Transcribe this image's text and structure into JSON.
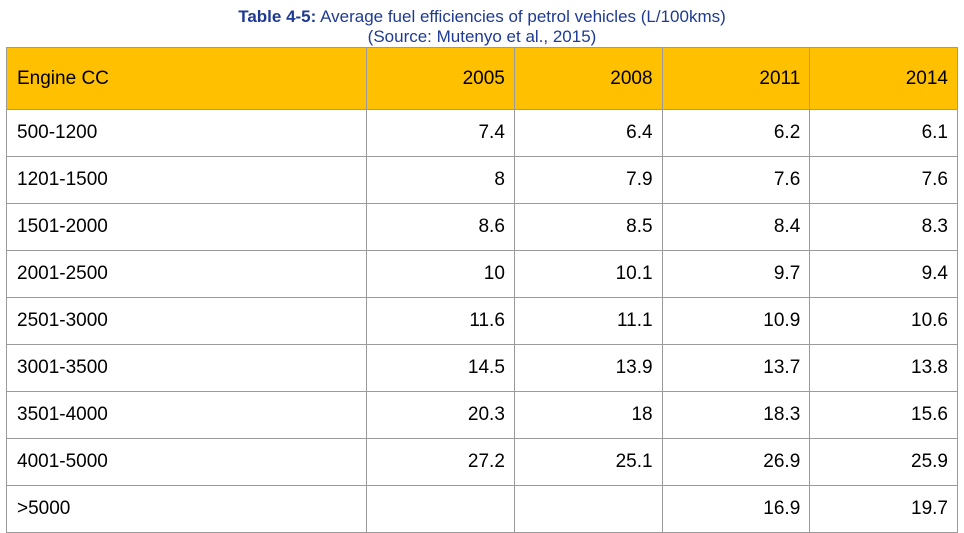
{
  "caption": {
    "label": "Table 4-5:",
    "title": "Average fuel efficiencies of petrol vehicles (L/100kms)",
    "source": "(Source: Mutenyo et al., 2015)"
  },
  "table": {
    "headers": [
      "Engine CC",
      "2005",
      "2008",
      "2011",
      "2014"
    ],
    "rows": [
      [
        "500-1200",
        "7.4",
        "6.4",
        "6.2",
        "6.1"
      ],
      [
        "1201-1500",
        "8",
        "7.9",
        "7.6",
        "7.6"
      ],
      [
        "1501-2000",
        "8.6",
        "8.5",
        "8.4",
        "8.3"
      ],
      [
        "2001-2500",
        "10",
        "10.1",
        "9.7",
        "9.4"
      ],
      [
        "2501-3000",
        "11.6",
        "11.1",
        "10.9",
        "10.6"
      ],
      [
        "3001-3500",
        "14.5",
        "13.9",
        "13.7",
        "13.8"
      ],
      [
        "3501-4000",
        "20.3",
        "18",
        "18.3",
        "15.6"
      ],
      [
        "4001-5000",
        "27.2",
        "25.1",
        "26.9",
        "25.9"
      ],
      [
        ">5000",
        "",
        "",
        "16.9",
        "19.7"
      ]
    ]
  },
  "colors": {
    "caption_text": "#1f3a93",
    "header_fill": "#ffc000",
    "grid_line": "#9a9a9a"
  }
}
